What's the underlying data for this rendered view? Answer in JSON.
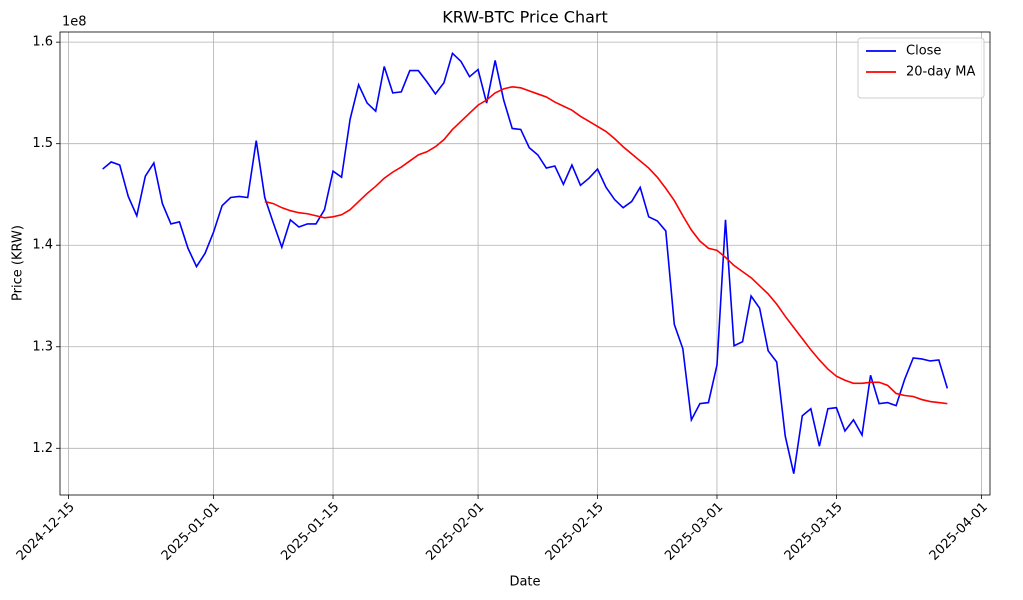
{
  "chart_data": {
    "type": "line",
    "title": "KRW-BTC Price Chart",
    "xlabel": "Date",
    "ylabel": "Price (KRW)",
    "y_offset_label": "1e8",
    "x": [
      "2024-12-19",
      "2024-12-20",
      "2024-12-21",
      "2024-12-22",
      "2024-12-23",
      "2024-12-24",
      "2024-12-25",
      "2024-12-26",
      "2024-12-27",
      "2024-12-28",
      "2024-12-29",
      "2024-12-30",
      "2024-12-31",
      "2025-01-01",
      "2025-01-02",
      "2025-01-03",
      "2025-01-04",
      "2025-01-05",
      "2025-01-06",
      "2025-01-07",
      "2025-01-08",
      "2025-01-09",
      "2025-01-10",
      "2025-01-11",
      "2025-01-12",
      "2025-01-13",
      "2025-01-14",
      "2025-01-15",
      "2025-01-16",
      "2025-01-17",
      "2025-01-18",
      "2025-01-19",
      "2025-01-20",
      "2025-01-21",
      "2025-01-22",
      "2025-01-23",
      "2025-01-24",
      "2025-01-25",
      "2025-01-26",
      "2025-01-27",
      "2025-01-28",
      "2025-01-29",
      "2025-01-30",
      "2025-01-31",
      "2025-02-01",
      "2025-02-02",
      "2025-02-03",
      "2025-02-04",
      "2025-02-05",
      "2025-02-06",
      "2025-02-07",
      "2025-02-08",
      "2025-02-09",
      "2025-02-10",
      "2025-02-11",
      "2025-02-12",
      "2025-02-13",
      "2025-02-14",
      "2025-02-15",
      "2025-02-16",
      "2025-02-17",
      "2025-02-18",
      "2025-02-19",
      "2025-02-20",
      "2025-02-21",
      "2025-02-22",
      "2025-02-23",
      "2025-02-24",
      "2025-02-25",
      "2025-02-26",
      "2025-02-27",
      "2025-02-28",
      "2025-03-01",
      "2025-03-02",
      "2025-03-03",
      "2025-03-04",
      "2025-03-05",
      "2025-03-06",
      "2025-03-07",
      "2025-03-08",
      "2025-03-09",
      "2025-03-10",
      "2025-03-11",
      "2025-03-12",
      "2025-03-13",
      "2025-03-14",
      "2025-03-15",
      "2025-03-16",
      "2025-03-17",
      "2025-03-18",
      "2025-03-19",
      "2025-03-20",
      "2025-03-21",
      "2025-03-22",
      "2025-03-23",
      "2025-03-24",
      "2025-03-25",
      "2025-03-26",
      "2025-03-27",
      "2025-03-28"
    ],
    "series": [
      {
        "name": "Close",
        "color": "#0000ff",
        "values": [
          147500000,
          148200000,
          147900000,
          144800000,
          142900000,
          146800000,
          148100000,
          144100000,
          142100000,
          142300000,
          139700000,
          137900000,
          139200000,
          141300000,
          143900000,
          144700000,
          144800000,
          144700000,
          150300000,
          144700000,
          142200000,
          139800000,
          142500000,
          141800000,
          142100000,
          142100000,
          143500000,
          147300000,
          146700000,
          152400000,
          155800000,
          154000000,
          153200000,
          157600000,
          155000000,
          155100000,
          157200000,
          157200000,
          156100000,
          154900000,
          156000000,
          158900000,
          158100000,
          156600000,
          157300000,
          154000000,
          158200000,
          154300000,
          151500000,
          151400000,
          149600000,
          148900000,
          147600000,
          147800000,
          146000000,
          147900000,
          145900000,
          146600000,
          147500000,
          145700000,
          144500000,
          143700000,
          144300000,
          145700000,
          142800000,
          142400000,
          141400000,
          132200000,
          129800000,
          122800000,
          124400000,
          124500000,
          128200000,
          142500000,
          130100000,
          130500000,
          135000000,
          133800000,
          129600000,
          128500000,
          121200000,
          117500000,
          123200000,
          123900000,
          120200000,
          123900000,
          124000000,
          121700000,
          122800000,
          121300000,
          127200000,
          124400000,
          124500000,
          124200000,
          126800000,
          128900000,
          128800000,
          128600000,
          128700000,
          125900000
        ]
      },
      {
        "name": "20-day MA",
        "color": "#ff0000",
        "values": [
          null,
          null,
          null,
          null,
          null,
          null,
          null,
          null,
          null,
          null,
          null,
          null,
          null,
          null,
          null,
          null,
          null,
          null,
          null,
          144300000,
          144100000,
          143700000,
          143400000,
          143200000,
          143100000,
          142900000,
          142700000,
          142800000,
          143000000,
          143500000,
          144300000,
          145100000,
          145800000,
          146600000,
          147200000,
          147700000,
          148300000,
          148900000,
          149200000,
          149700000,
          150400000,
          151400000,
          152200000,
          153000000,
          153800000,
          154300000,
          155000000,
          155400000,
          155600000,
          155500000,
          155200000,
          154900000,
          154600000,
          154100000,
          153700000,
          153300000,
          152700000,
          152200000,
          151700000,
          151200000,
          150500000,
          149700000,
          149000000,
          148300000,
          147600000,
          146700000,
          145600000,
          144400000,
          142900000,
          141500000,
          140400000,
          139700000,
          139500000,
          138800000,
          138000000,
          137400000,
          136800000,
          136000000,
          135200000,
          134200000,
          133000000,
          131900000,
          130800000,
          129700000,
          128700000,
          127800000,
          127100000,
          126700000,
          126400000,
          126400000,
          126500000,
          126500000,
          126200000,
          125400000,
          125200000,
          125100000,
          124800000,
          124600000,
          124500000,
          124400000
        ]
      }
    ],
    "xlim": [
      "2024-12-14",
      "2025-04-02"
    ],
    "xticks": [
      "2024-12-15",
      "2025-01-01",
      "2025-01-15",
      "2025-02-01",
      "2025-02-15",
      "2025-03-01",
      "2025-03-15",
      "2025-04-01"
    ],
    "ylim": [
      115400000,
      161000000
    ],
    "yticks": [
      {
        "value": 120000000,
        "label": "1.2"
      },
      {
        "value": 130000000,
        "label": "1.3"
      },
      {
        "value": 140000000,
        "label": "1.4"
      },
      {
        "value": 150000000,
        "label": "1.5"
      },
      {
        "value": 160000000,
        "label": "1.6"
      }
    ],
    "grid": true,
    "legend": "upper right"
  }
}
